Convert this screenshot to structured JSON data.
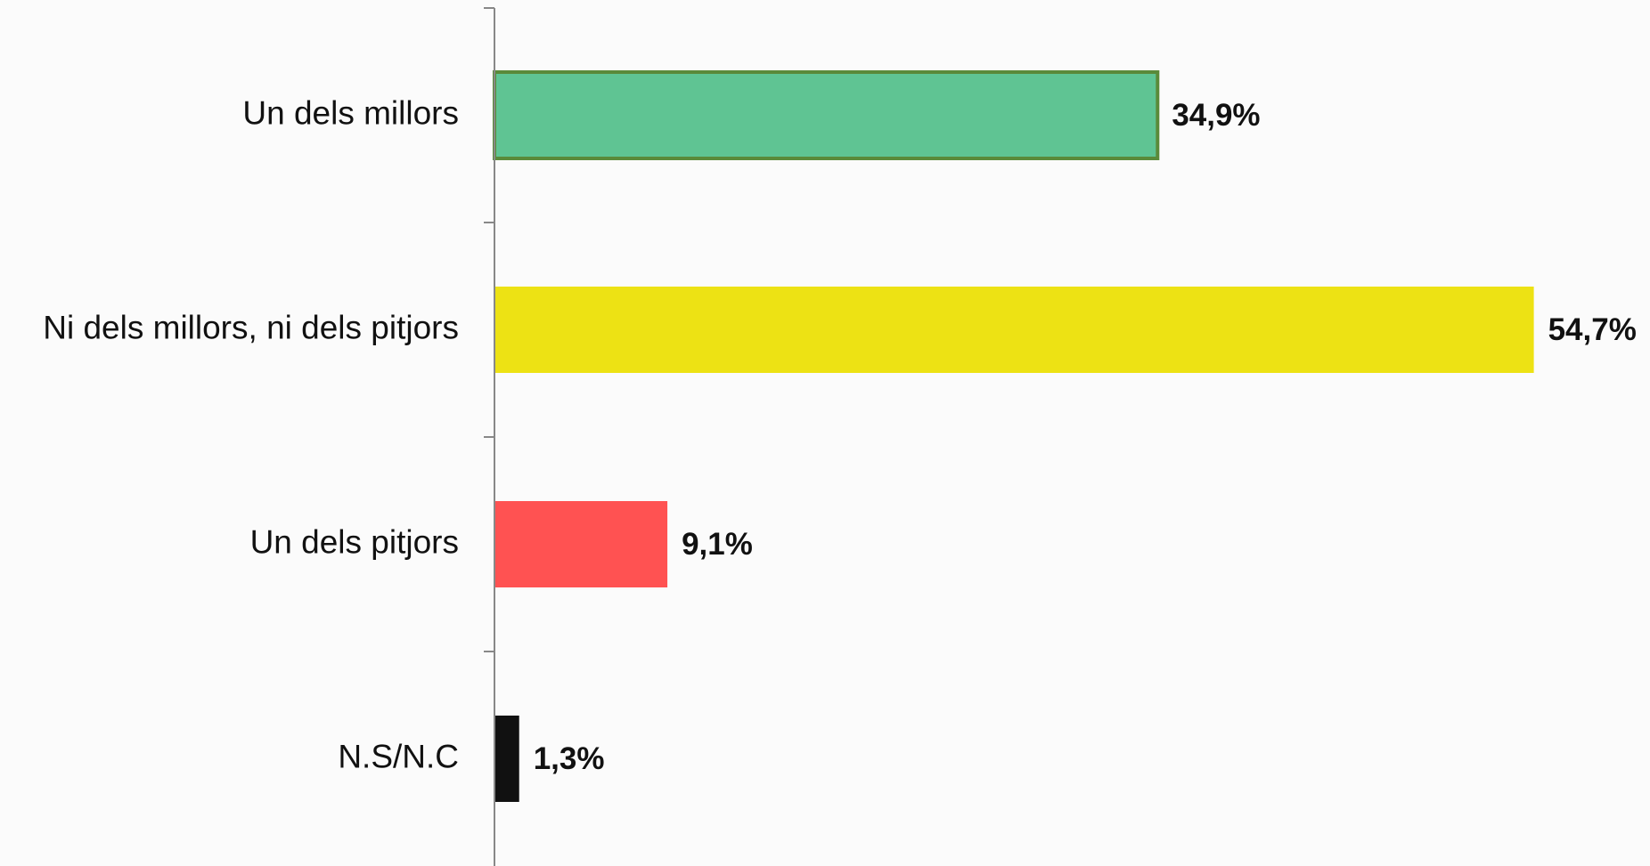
{
  "chart_data": {
    "type": "hbar",
    "categories": [
      "Un dels millors",
      "Ni dels millors, ni dels pitjors",
      "Un dels pitjors",
      "N.S/N.C"
    ],
    "values": [
      34.9,
      54.7,
      9.1,
      1.3
    ],
    "value_labels": [
      "34,9%",
      "54,7%",
      "9,1%",
      "1,3%"
    ],
    "colors": [
      "#5fc493",
      "#ede214",
      "#ff5252",
      "#111111"
    ],
    "xlim": [
      0,
      55
    ]
  }
}
